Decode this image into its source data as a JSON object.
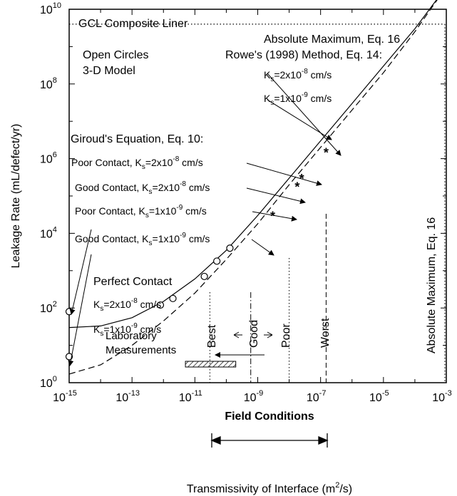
{
  "chart_data": {
    "type": "line",
    "title": "GCL Composite Liner",
    "xlabel": "Transmissivity of Interface (m²/s)",
    "ylabel": "Leakage Rate (mL/defect/yr)",
    "x_scale": "log",
    "y_scale": "log",
    "xlim": [
      1e-15,
      0.001
    ],
    "ylim": [
      1,
      10000000000.0
    ],
    "x_ticks": [
      {
        "base": "10",
        "exp": "-15"
      },
      {
        "base": "10",
        "exp": "-13"
      },
      {
        "base": "10",
        "exp": "-11"
      },
      {
        "base": "10",
        "exp": "-9"
      },
      {
        "base": "10",
        "exp": "-7"
      },
      {
        "base": "10",
        "exp": "-5"
      },
      {
        "base": "10",
        "exp": "-3"
      }
    ],
    "y_ticks": [
      {
        "base": "10",
        "exp": "0"
      },
      {
        "base": "10",
        "exp": "2"
      },
      {
        "base": "10",
        "exp": "4"
      },
      {
        "base": "10",
        "exp": "6"
      },
      {
        "base": "10",
        "exp": "8"
      },
      {
        "base": "10",
        "exp": "10"
      }
    ],
    "series": [
      {
        "name": "Rowe's (1998) Method, Eq. 14: Ks=2x10-8 cm/s",
        "style": "solid",
        "x": [
          1e-15,
          1e-14,
          1e-13,
          1e-12,
          1e-11,
          1e-10,
          1e-09,
          1e-08,
          1e-07,
          1e-06,
          1e-05,
          0.0001,
          0.001
        ],
        "y": [
          30,
          33,
          55,
          150,
          600,
          3500,
          30000,
          300000,
          3000000,
          30000000,
          300000000,
          3000000000,
          40000000000
        ]
      },
      {
        "name": "Rowe's (1998) Method, Eq. 14: Ks=1x10-9 cm/s",
        "style": "dashed",
        "x": [
          1e-15,
          1e-14,
          1e-13,
          1e-12,
          1e-11,
          1e-10,
          1e-09,
          1e-08,
          1e-07,
          1e-06,
          1e-05,
          0.0001,
          0.001
        ],
        "y": [
          1.7,
          3,
          10,
          45,
          250,
          2000,
          18000,
          200000,
          2000000,
          20000000,
          200000000,
          2500000000,
          40000000000
        ]
      }
    ],
    "open_circles": {
      "name": "3-D Model",
      "x": [
        1e-15,
        1e-15,
        8e-13,
        2e-12,
        2e-11,
        5e-11,
        1.3e-10
      ],
      "y": [
        80,
        5,
        120,
        180,
        700,
        1800,
        4000
      ]
    },
    "giroud_points": {
      "x": [
        1.5e-07,
        2.5e-08,
        1.8e-08,
        3e-09
      ],
      "y": [
        1500000,
        300000,
        180000,
        30000
      ]
    },
    "absolute_maximum_y": 4000000000.0,
    "absolute_maximum_x": 0.0009,
    "vertical_markers": [
      {
        "label": "Best",
        "x": 3e-11,
        "style": "dotted"
      },
      {
        "label": "Good",
        "x": 6e-10,
        "style": "dashdot"
      },
      {
        "label": "Poor",
        "x": 1e-08,
        "style": "dotted"
      },
      {
        "label": "Worst",
        "x": 1.5e-07,
        "style": "dashed"
      }
    ],
    "lab_measurements": {
      "label": "Laboratory Measurements",
      "x_range": [
        5e-12,
        2e-10
      ]
    },
    "field_conditions": {
      "label": "Field Conditions",
      "x_range": [
        3e-11,
        1.5e-07
      ]
    },
    "annotations": {
      "title": "GCL Composite Liner",
      "open_circles_line1": "Open Circles",
      "open_circles_line2": "3-D Model",
      "abs_max_h": "Absolute Maximum, Eq. 16",
      "abs_max_v": "Absolute Maximum, Eq. 16",
      "rowe_title": "Rowe's (1998) Method, Eq. 14:",
      "rowe_k1": "=2x10",
      "rowe_k1_exp": "-8",
      "rowe_k2": "=1x10",
      "rowe_k2_exp": "-9",
      "giroud_title": "Giroud's Equation, Eq. 10:",
      "poor_contact": "Poor Contact, K",
      "good_contact": "Good Contact, K",
      "ks_sub": "s",
      "eq_2e8": "=2x10",
      "eq_1e9": "=1x10",
      "exp_m8": "-8",
      "exp_m9": "-9",
      "units": " cm/s",
      "perfect_contact": "Perfect Contact",
      "k_label": "K",
      "best": "Best",
      "good": "Good",
      "poor": "Poor",
      "worst": "Worst",
      "lab_line1": "Laboratory",
      "lab_line2": "Measurements",
      "field_conditions": "Field Conditions",
      "xlabel_main": "Transmissivity of Interface (m",
      "xlabel_sup": "2",
      "xlabel_end": "/s)"
    }
  }
}
